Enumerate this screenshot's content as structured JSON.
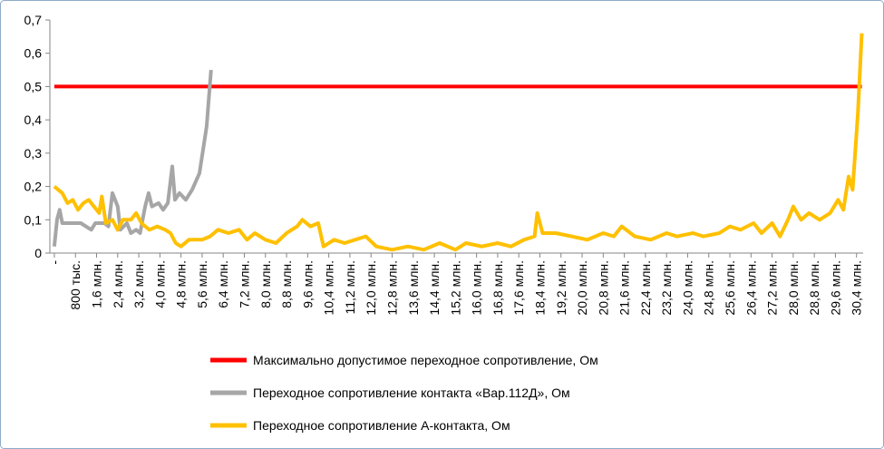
{
  "chart_data": {
    "type": "line",
    "xlim": [
      -170000,
      30650000
    ],
    "ylim": [
      0,
      0.7
    ],
    "yticks": [
      0,
      {
        "value": 0.1,
        "label": "0,1"
      },
      {
        "value": 0.2,
        "label": "0,2"
      },
      {
        "value": 0.3,
        "label": "0,3"
      },
      {
        "value": 0.4,
        "label": "0,4"
      },
      {
        "value": 0.5,
        "label": "0,5"
      },
      {
        "value": 0.6,
        "label": "0,6"
      },
      {
        "value": 0.7,
        "label": "0,7"
      }
    ],
    "xticks": [
      {
        "value": 0,
        "label": "-"
      },
      {
        "value": 800000,
        "label": "800 тыс."
      },
      {
        "value": 1600000,
        "label": "1,6 млн."
      },
      {
        "value": 2400000,
        "label": "2,4 млн."
      },
      {
        "value": 3200000,
        "label": "3,2 млн."
      },
      {
        "value": 4000000,
        "label": "4,0 млн."
      },
      {
        "value": 4800000,
        "label": "4,8 млн."
      },
      {
        "value": 5600000,
        "label": "5,6 млн."
      },
      {
        "value": 6400000,
        "label": "6,4 млн."
      },
      {
        "value": 7200000,
        "label": "7,2 млн."
      },
      {
        "value": 8000000,
        "label": "8,0 млн."
      },
      {
        "value": 8800000,
        "label": "8,8 млн."
      },
      {
        "value": 9600000,
        "label": "9,6 млн."
      },
      {
        "value": 10400000,
        "label": "10,4 млн."
      },
      {
        "value": 11200000,
        "label": "11,2 млн."
      },
      {
        "value": 12000000,
        "label": "12,0 млн."
      },
      {
        "value": 12800000,
        "label": "12,8 млн."
      },
      {
        "value": 13600000,
        "label": "13,6 млн."
      },
      {
        "value": 14400000,
        "label": "14,4 млн."
      },
      {
        "value": 15200000,
        "label": "15,2 млн."
      },
      {
        "value": 16000000,
        "label": "16,0 млн."
      },
      {
        "value": 16800000,
        "label": "16,8 млн."
      },
      {
        "value": 17600000,
        "label": "17,6 млн."
      },
      {
        "value": 18400000,
        "label": "18,4 млн."
      },
      {
        "value": 19200000,
        "label": "19,2 млн."
      },
      {
        "value": 20000000,
        "label": "20,0 млн."
      },
      {
        "value": 20800000,
        "label": "20,8 млн."
      },
      {
        "value": 21600000,
        "label": "21,6 млн."
      },
      {
        "value": 22400000,
        "label": "22,4 млн."
      },
      {
        "value": 23200000,
        "label": "23,2 млн."
      },
      {
        "value": 24000000,
        "label": "24,0 млн."
      },
      {
        "value": 24800000,
        "label": "24,8 млн."
      },
      {
        "value": 25600000,
        "label": "25,6 млн."
      },
      {
        "value": 26400000,
        "label": "26,4 млн."
      },
      {
        "value": 27200000,
        "label": "27,2 млн."
      },
      {
        "value": 28000000,
        "label": "28,0 млн."
      },
      {
        "value": 28800000,
        "label": "28,8 млн."
      },
      {
        "value": 29600000,
        "label": "29,6 млн."
      },
      {
        "value": 30400000,
        "label": "30,4 млн."
      }
    ],
    "series": [
      {
        "name": "Максимально допустимое переходное сопротивление, Ом",
        "color": "#ff0000",
        "x": [
          0,
          30600000
        ],
        "values": [
          0.5,
          0.5
        ]
      },
      {
        "name": "Переходное сопротивление контакта «Вар.112Д», Ом",
        "color": "#a6a6a6",
        "x": [
          0,
          100000,
          200000,
          300000,
          1000000,
          1400000,
          1550000,
          1900000,
          2050000,
          2200000,
          2400000,
          2500000,
          2750000,
          2900000,
          3100000,
          3250000,
          3440000,
          3570000,
          3700000,
          3950000,
          4120000,
          4300000,
          4470000,
          4570000,
          4740000,
          4980000,
          5220000,
          5500000,
          5770000,
          5940000
        ],
        "values": [
          0.02,
          0.1,
          0.13,
          0.09,
          0.09,
          0.07,
          0.09,
          0.09,
          0.08,
          0.18,
          0.14,
          0.07,
          0.09,
          0.06,
          0.07,
          0.06,
          0.14,
          0.18,
          0.14,
          0.15,
          0.13,
          0.15,
          0.26,
          0.16,
          0.18,
          0.16,
          0.19,
          0.24,
          0.38,
          0.55
        ]
      },
      {
        "name": "Переходное сопротивление А-контакта, Ом",
        "color": "#ffc000",
        "x": [
          0,
          300000,
          500000,
          700000,
          900000,
          1100000,
          1300000,
          1500000,
          1700000,
          1800000,
          1950000,
          2200000,
          2400000,
          2600000,
          2900000,
          3100000,
          3300000,
          3600000,
          3900000,
          4200000,
          4400000,
          4600000,
          4800000,
          5100000,
          5600000,
          5900000,
          6200000,
          6600000,
          7000000,
          7300000,
          7600000,
          8000000,
          8400000,
          8800000,
          9200000,
          9400000,
          9700000,
          10000000,
          10200000,
          10600000,
          11000000,
          11400000,
          11800000,
          12200000,
          12800000,
          13400000,
          14000000,
          14600000,
          15200000,
          15600000,
          16200000,
          16800000,
          17300000,
          17800000,
          18200000,
          18300000,
          18500000,
          19000000,
          19600000,
          20200000,
          20800000,
          21200000,
          21500000,
          22000000,
          22600000,
          23200000,
          23600000,
          24200000,
          24600000,
          25200000,
          25600000,
          26000000,
          26500000,
          26800000,
          27200000,
          27500000,
          27800000,
          28000000,
          28300000,
          28600000,
          29000000,
          29400000,
          29700000,
          29900000,
          30100000,
          30250000,
          30450000,
          30600000
        ],
        "values": [
          0.2,
          0.18,
          0.15,
          0.16,
          0.13,
          0.15,
          0.16,
          0.14,
          0.12,
          0.17,
          0.09,
          0.1,
          0.07,
          0.1,
          0.1,
          0.12,
          0.09,
          0.07,
          0.08,
          0.07,
          0.06,
          0.03,
          0.02,
          0.04,
          0.04,
          0.05,
          0.07,
          0.06,
          0.07,
          0.04,
          0.06,
          0.04,
          0.03,
          0.06,
          0.08,
          0.1,
          0.08,
          0.09,
          0.02,
          0.04,
          0.03,
          0.04,
          0.05,
          0.02,
          0.01,
          0.02,
          0.01,
          0.03,
          0.01,
          0.03,
          0.02,
          0.03,
          0.02,
          0.04,
          0.05,
          0.12,
          0.06,
          0.06,
          0.05,
          0.04,
          0.06,
          0.05,
          0.08,
          0.05,
          0.04,
          0.06,
          0.05,
          0.06,
          0.05,
          0.06,
          0.08,
          0.07,
          0.09,
          0.06,
          0.09,
          0.05,
          0.1,
          0.14,
          0.1,
          0.12,
          0.1,
          0.12,
          0.16,
          0.13,
          0.23,
          0.19,
          0.42,
          0.66
        ]
      }
    ]
  }
}
